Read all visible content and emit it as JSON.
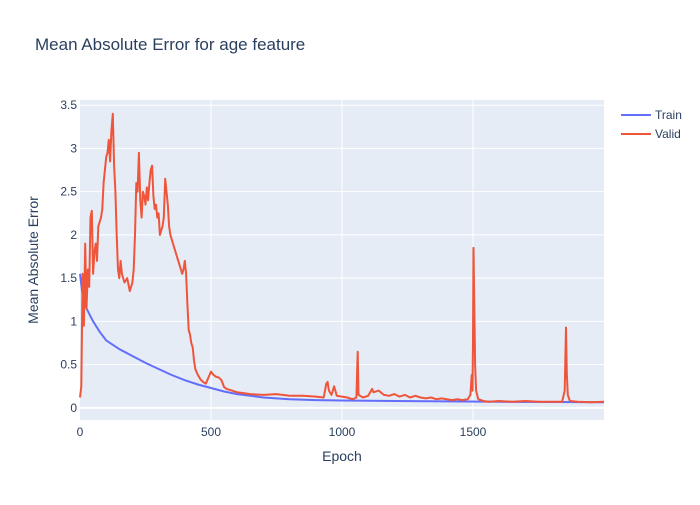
{
  "chart_data": {
    "type": "line",
    "title": "Mean Absolute Error for age feature",
    "xlabel": "Epoch",
    "ylabel": "Mean Absolute Error",
    "xlim": [
      0,
      2000
    ],
    "ylim": [
      -0.14,
      3.56
    ],
    "x_ticks": [
      0,
      500,
      1000,
      1500
    ],
    "y_ticks": [
      0,
      0.5,
      1,
      1.5,
      2,
      2.5,
      3,
      3.5
    ],
    "x_tick_labels": [
      "0",
      "500",
      "1000",
      "1500"
    ],
    "y_tick_labels": [
      "0",
      "0.5",
      "1",
      "1.5",
      "2",
      "2.5",
      "3",
      "3.5"
    ],
    "grid": true,
    "legend_position": "top-right",
    "colors": {
      "plot_bg": "#e5ecf6",
      "grid": "#ffffff",
      "text": "#2a3f5f"
    },
    "series": [
      {
        "name": "Train",
        "color": "#636efa",
        "points": [
          [
            0,
            1.55
          ],
          [
            10,
            1.3
          ],
          [
            25,
            1.15
          ],
          [
            50,
            1.0
          ],
          [
            75,
            0.88
          ],
          [
            100,
            0.78
          ],
          [
            150,
            0.68
          ],
          [
            200,
            0.6
          ],
          [
            250,
            0.52
          ],
          [
            300,
            0.45
          ],
          [
            350,
            0.38
          ],
          [
            400,
            0.32
          ],
          [
            450,
            0.27
          ],
          [
            500,
            0.23
          ],
          [
            550,
            0.19
          ],
          [
            600,
            0.16
          ],
          [
            650,
            0.14
          ],
          [
            700,
            0.12
          ],
          [
            800,
            0.1
          ],
          [
            900,
            0.09
          ],
          [
            1000,
            0.085
          ],
          [
            1200,
            0.08
          ],
          [
            1400,
            0.075
          ],
          [
            1600,
            0.07
          ],
          [
            1800,
            0.068
          ],
          [
            2000,
            0.065
          ]
        ]
      },
      {
        "name": "Valid",
        "color": "#ef553b",
        "points": [
          [
            0,
            0.12
          ],
          [
            5,
            0.25
          ],
          [
            10,
            1.55
          ],
          [
            15,
            0.95
          ],
          [
            20,
            1.9
          ],
          [
            25,
            1.15
          ],
          [
            30,
            1.6
          ],
          [
            35,
            1.4
          ],
          [
            40,
            2.2
          ],
          [
            45,
            2.28
          ],
          [
            50,
            1.55
          ],
          [
            55,
            1.8
          ],
          [
            60,
            1.9
          ],
          [
            65,
            1.7
          ],
          [
            70,
            2.1
          ],
          [
            75,
            2.15
          ],
          [
            80,
            2.2
          ],
          [
            85,
            2.3
          ],
          [
            90,
            2.6
          ],
          [
            95,
            2.75
          ],
          [
            100,
            2.9
          ],
          [
            105,
            2.95
          ],
          [
            110,
            3.1
          ],
          [
            115,
            2.85
          ],
          [
            120,
            3.2
          ],
          [
            125,
            3.4
          ],
          [
            130,
            2.8
          ],
          [
            135,
            2.5
          ],
          [
            140,
            2.0
          ],
          [
            145,
            1.6
          ],
          [
            150,
            1.5
          ],
          [
            155,
            1.7
          ],
          [
            160,
            1.55
          ],
          [
            170,
            1.45
          ],
          [
            180,
            1.5
          ],
          [
            190,
            1.35
          ],
          [
            200,
            1.45
          ],
          [
            205,
            1.6
          ],
          [
            210,
            2.0
          ],
          [
            215,
            2.6
          ],
          [
            220,
            2.5
          ],
          [
            225,
            2.95
          ],
          [
            230,
            2.4
          ],
          [
            235,
            2.2
          ],
          [
            240,
            2.5
          ],
          [
            245,
            2.45
          ],
          [
            250,
            2.35
          ],
          [
            255,
            2.55
          ],
          [
            260,
            2.4
          ],
          [
            265,
            2.6
          ],
          [
            270,
            2.75
          ],
          [
            275,
            2.8
          ],
          [
            280,
            2.45
          ],
          [
            285,
            2.3
          ],
          [
            290,
            2.35
          ],
          [
            295,
            2.2
          ],
          [
            300,
            2.25
          ],
          [
            305,
            2.0
          ],
          [
            310,
            2.05
          ],
          [
            315,
            2.1
          ],
          [
            320,
            2.2
          ],
          [
            325,
            2.65
          ],
          [
            330,
            2.5
          ],
          [
            335,
            2.35
          ],
          [
            340,
            2.1
          ],
          [
            345,
            2.0
          ],
          [
            350,
            1.95
          ],
          [
            355,
            1.9
          ],
          [
            360,
            1.85
          ],
          [
            365,
            1.8
          ],
          [
            370,
            1.75
          ],
          [
            375,
            1.7
          ],
          [
            380,
            1.65
          ],
          [
            385,
            1.6
          ],
          [
            390,
            1.55
          ],
          [
            395,
            1.6
          ],
          [
            400,
            1.7
          ],
          [
            405,
            1.55
          ],
          [
            410,
            1.2
          ],
          [
            415,
            0.9
          ],
          [
            420,
            0.85
          ],
          [
            425,
            0.75
          ],
          [
            430,
            0.7
          ],
          [
            435,
            0.55
          ],
          [
            440,
            0.45
          ],
          [
            450,
            0.38
          ],
          [
            460,
            0.33
          ],
          [
            470,
            0.3
          ],
          [
            480,
            0.28
          ],
          [
            490,
            0.35
          ],
          [
            500,
            0.42
          ],
          [
            510,
            0.38
          ],
          [
            520,
            0.36
          ],
          [
            530,
            0.35
          ],
          [
            540,
            0.32
          ],
          [
            550,
            0.24
          ],
          [
            560,
            0.22
          ],
          [
            580,
            0.2
          ],
          [
            600,
            0.18
          ],
          [
            650,
            0.16
          ],
          [
            700,
            0.15
          ],
          [
            750,
            0.16
          ],
          [
            800,
            0.14
          ],
          [
            850,
            0.14
          ],
          [
            900,
            0.13
          ],
          [
            930,
            0.12
          ],
          [
            940,
            0.28
          ],
          [
            945,
            0.3
          ],
          [
            950,
            0.2
          ],
          [
            960,
            0.15
          ],
          [
            970,
            0.25
          ],
          [
            980,
            0.14
          ],
          [
            1000,
            0.13
          ],
          [
            1020,
            0.12
          ],
          [
            1040,
            0.1
          ],
          [
            1055,
            0.12
          ],
          [
            1060,
            0.65
          ],
          [
            1063,
            0.15
          ],
          [
            1080,
            0.12
          ],
          [
            1100,
            0.14
          ],
          [
            1115,
            0.22
          ],
          [
            1120,
            0.18
          ],
          [
            1140,
            0.2
          ],
          [
            1160,
            0.15
          ],
          [
            1180,
            0.14
          ],
          [
            1200,
            0.16
          ],
          [
            1220,
            0.13
          ],
          [
            1240,
            0.15
          ],
          [
            1260,
            0.12
          ],
          [
            1280,
            0.14
          ],
          [
            1300,
            0.12
          ],
          [
            1320,
            0.11
          ],
          [
            1340,
            0.12
          ],
          [
            1360,
            0.1
          ],
          [
            1380,
            0.11
          ],
          [
            1400,
            0.1
          ],
          [
            1420,
            0.09
          ],
          [
            1440,
            0.1
          ],
          [
            1460,
            0.09
          ],
          [
            1480,
            0.1
          ],
          [
            1490,
            0.15
          ],
          [
            1495,
            0.38
          ],
          [
            1498,
            0.2
          ],
          [
            1500,
            0.8
          ],
          [
            1502,
            1.85
          ],
          [
            1505,
            1.2
          ],
          [
            1508,
            0.5
          ],
          [
            1512,
            0.2
          ],
          [
            1520,
            0.1
          ],
          [
            1540,
            0.08
          ],
          [
            1560,
            0.07
          ],
          [
            1600,
            0.08
          ],
          [
            1650,
            0.07
          ],
          [
            1700,
            0.08
          ],
          [
            1750,
            0.07
          ],
          [
            1800,
            0.07
          ],
          [
            1840,
            0.07
          ],
          [
            1850,
            0.2
          ],
          [
            1855,
            0.93
          ],
          [
            1858,
            0.4
          ],
          [
            1862,
            0.15
          ],
          [
            1870,
            0.08
          ],
          [
            1900,
            0.07
          ],
          [
            1950,
            0.065
          ],
          [
            2000,
            0.07
          ]
        ]
      }
    ]
  }
}
